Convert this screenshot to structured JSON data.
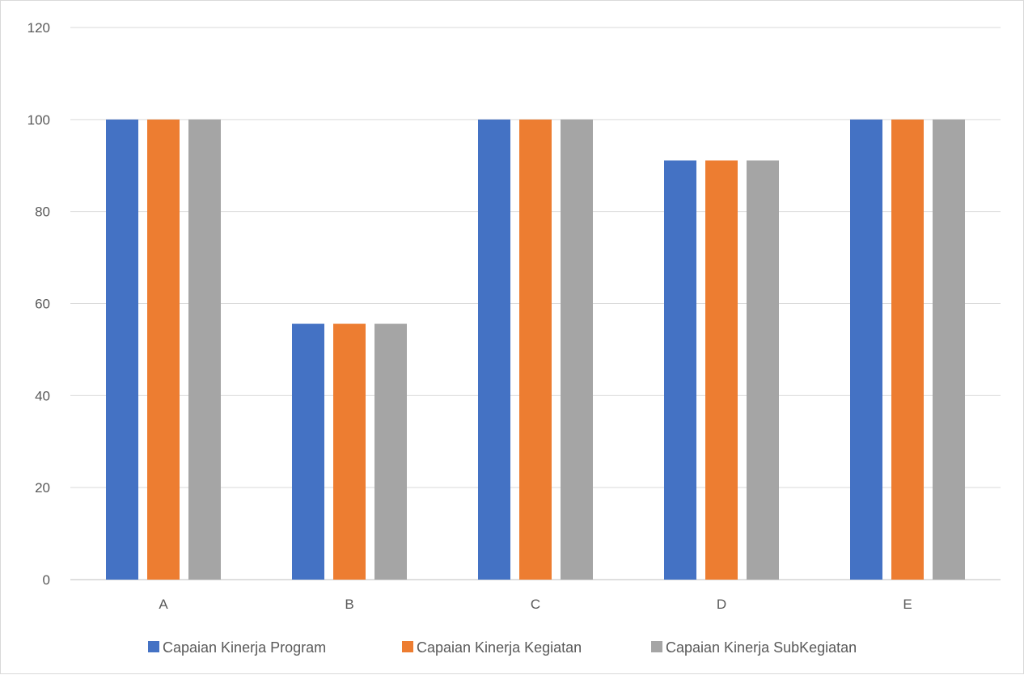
{
  "chart_data": {
    "type": "bar",
    "title": "",
    "xlabel": "",
    "ylabel": "",
    "categories": [
      "A",
      "B",
      "C",
      "D",
      "E"
    ],
    "series": [
      {
        "name": "Capaian Kinerja Program",
        "color": "#4472c4",
        "values": [
          100,
          55.6,
          100,
          91.1,
          100
        ]
      },
      {
        "name": "Capaian Kinerja Kegiatan",
        "color": "#ed7d31",
        "values": [
          100,
          55.6,
          100,
          91.1,
          100
        ]
      },
      {
        "name": "Capaian Kinerja SubKegiatan",
        "color": "#a5a5a5",
        "values": [
          100,
          55.6,
          100,
          91.1,
          100
        ]
      }
    ],
    "ylim": [
      0,
      120
    ],
    "yticks": [
      0,
      20,
      40,
      60,
      80,
      100,
      120
    ],
    "grid": true,
    "legend_position": "bottom"
  }
}
